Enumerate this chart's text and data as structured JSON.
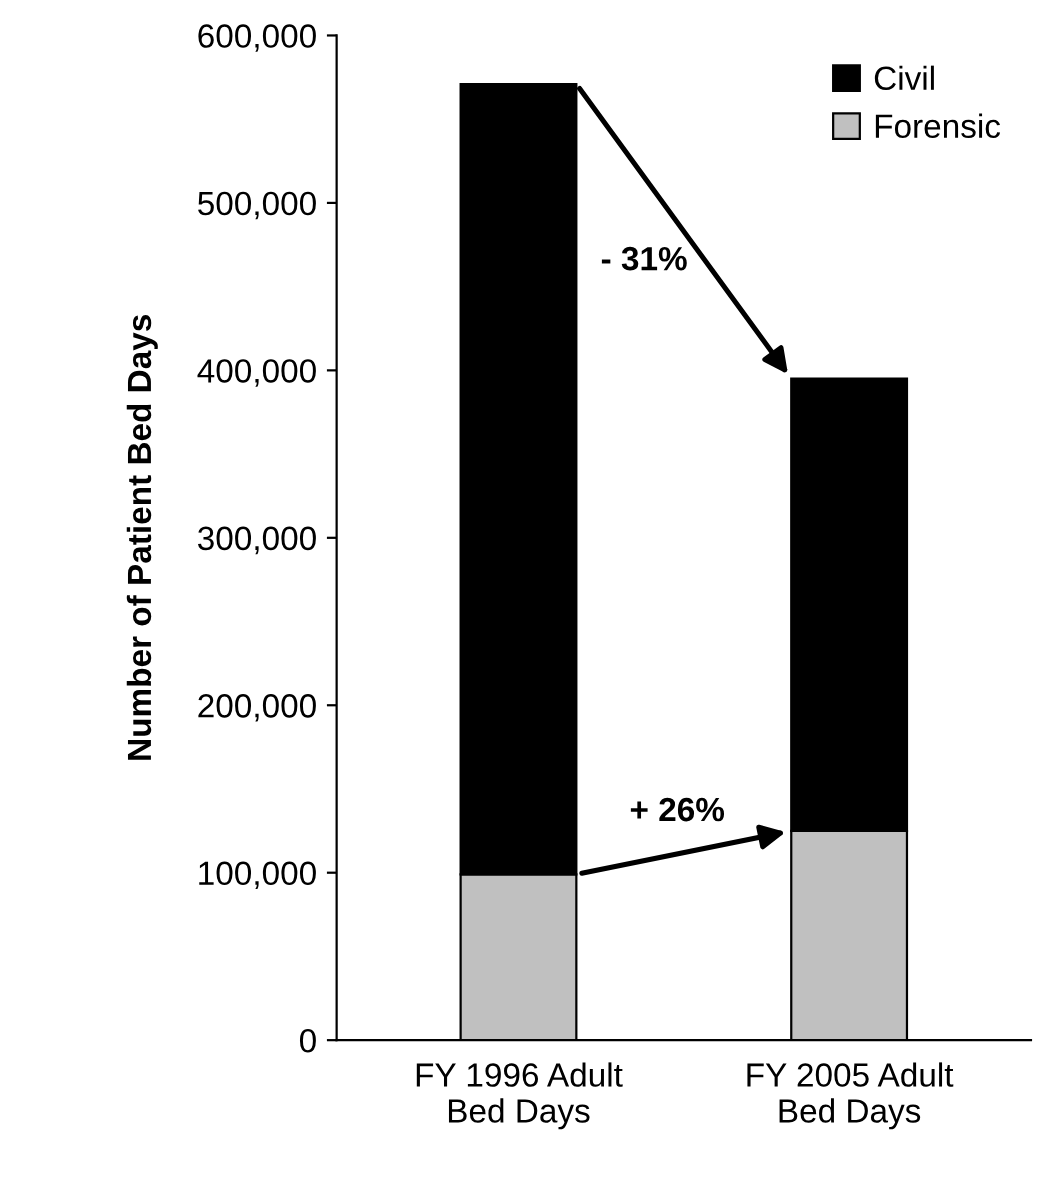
{
  "chart_data": {
    "type": "bar",
    "stacked": true,
    "ylabel": "Number of Patient Bed Days",
    "categories": [
      "FY 1996 Adult\nBed Days",
      "FY 2005 Adult\nBed Days"
    ],
    "series": [
      {
        "name": "Forensic",
        "color": "#c0c0c0",
        "values": [
          99000,
          125000
        ]
      },
      {
        "name": "Civil",
        "color": "#000000",
        "values": [
          472000,
          270000
        ]
      }
    ],
    "ylim": [
      0,
      600000
    ],
    "yticks": [
      {
        "value": 0,
        "label": "0"
      },
      {
        "value": 100000,
        "label": "100,000"
      },
      {
        "value": 200000,
        "label": "200,000"
      },
      {
        "value": 300000,
        "label": "300,000"
      },
      {
        "value": 400000,
        "label": "400,000"
      },
      {
        "value": 500000,
        "label": "500,000"
      },
      {
        "value": 600000,
        "label": "600,000"
      }
    ],
    "annotations": [
      "- 31%",
      "+ 26%"
    ],
    "grid": false,
    "legend": "top right"
  }
}
